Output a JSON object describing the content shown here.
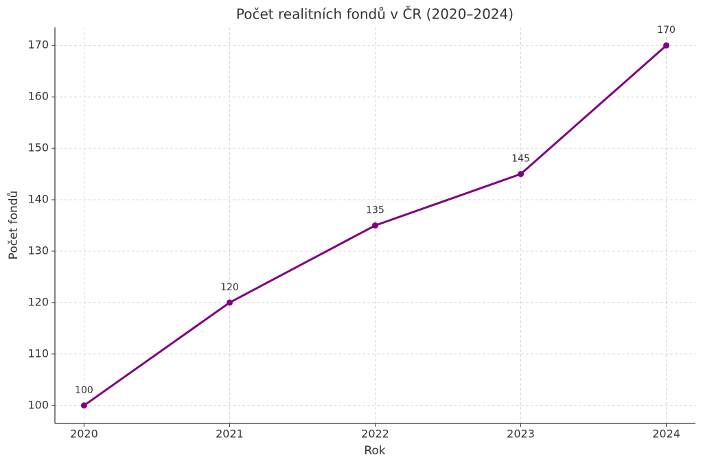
{
  "chart_data": {
    "type": "line",
    "title": "Počet realitních fondů v ČR (2020–2024)",
    "x_label": "Rok",
    "y_label": "Počet fondů",
    "x": [
      2020,
      2021,
      2022,
      2023,
      2024
    ],
    "series": [
      {
        "name": "Počet fondů",
        "color": "#800080",
        "values": [
          100,
          120,
          135,
          145,
          170
        ]
      }
    ],
    "xlim": [
      2019.8,
      2024.2
    ],
    "xticks": [
      2020,
      2021,
      2022,
      2023,
      2024
    ],
    "ylim": [
      96.5,
      173.5
    ],
    "yticks": [
      100,
      110,
      120,
      130,
      140,
      150,
      160,
      170
    ],
    "grid": true,
    "data_labels": true
  }
}
